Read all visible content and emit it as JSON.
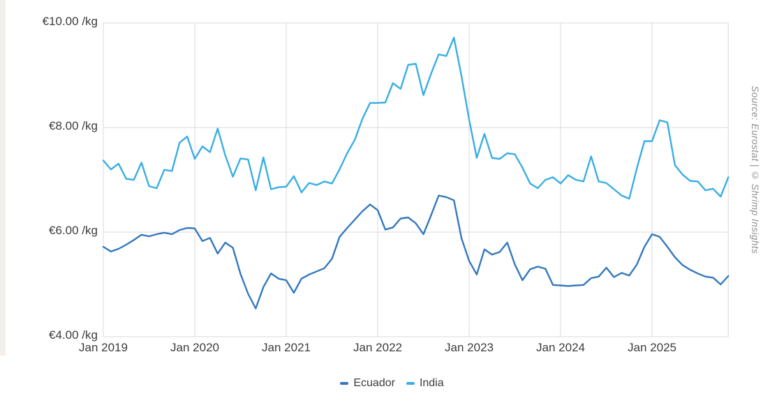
{
  "source_note": "Source: Eurostat | © Shrimp Insights",
  "legend": [
    {
      "label": "Ecuador",
      "color": "#3478bd"
    },
    {
      "label": "India",
      "color": "#3aaee3"
    }
  ],
  "colors": {
    "grid": "#d9d9d9",
    "axis_text": "#3c3c3c",
    "legend_text": "#3d3d3d",
    "source_text": "#8f8f8f",
    "background": "#ffffff",
    "left_strip": "#f5efec"
  },
  "chart_data": {
    "type": "line",
    "unit": "€/kg",
    "grid": true,
    "legend_position": "bottom",
    "x": [
      "2019-01",
      "2019-02",
      "2019-03",
      "2019-04",
      "2019-05",
      "2019-06",
      "2019-07",
      "2019-08",
      "2019-09",
      "2019-10",
      "2019-11",
      "2019-12",
      "2020-01",
      "2020-02",
      "2020-03",
      "2020-04",
      "2020-05",
      "2020-06",
      "2020-07",
      "2020-08",
      "2020-09",
      "2020-10",
      "2020-11",
      "2020-12",
      "2021-01",
      "2021-02",
      "2021-03",
      "2021-04",
      "2021-05",
      "2021-06",
      "2021-07",
      "2021-08",
      "2021-09",
      "2021-10",
      "2021-11",
      "2021-12",
      "2022-01",
      "2022-02",
      "2022-03",
      "2022-04",
      "2022-05",
      "2022-06",
      "2022-07",
      "2022-08",
      "2022-09",
      "2022-10",
      "2022-11",
      "2022-12",
      "2023-01",
      "2023-02",
      "2023-03",
      "2023-04",
      "2023-05",
      "2023-06",
      "2023-07",
      "2023-08",
      "2023-09",
      "2023-10",
      "2023-11",
      "2023-12",
      "2024-01",
      "2024-02",
      "2024-03",
      "2024-04",
      "2024-05",
      "2024-06",
      "2024-07",
      "2024-08",
      "2024-09",
      "2024-10",
      "2024-11",
      "2024-12",
      "2025-01",
      "2025-02",
      "2025-03",
      "2025-04",
      "2025-05",
      "2025-06",
      "2025-07",
      "2025-08",
      "2025-09",
      "2025-10",
      "2025-11"
    ],
    "series": [
      {
        "name": "Ecuador",
        "color": "#3478bd",
        "values": [
          5.72,
          5.63,
          5.68,
          5.76,
          5.85,
          5.95,
          5.92,
          5.96,
          5.99,
          5.96,
          6.04,
          6.08,
          6.07,
          5.83,
          5.89,
          5.59,
          5.8,
          5.7,
          5.2,
          4.82,
          4.54,
          4.95,
          5.21,
          5.11,
          5.08,
          4.84,
          5.11,
          5.19,
          5.25,
          5.31,
          5.49,
          5.91,
          6.08,
          6.24,
          6.4,
          6.53,
          6.42,
          6.05,
          6.09,
          6.26,
          6.28,
          6.17,
          5.96,
          6.32,
          6.7,
          6.67,
          6.61,
          5.88,
          5.45,
          5.19,
          5.67,
          5.57,
          5.62,
          5.8,
          5.38,
          5.08,
          5.29,
          5.34,
          5.3,
          4.99,
          4.98,
          4.97,
          4.98,
          4.99,
          5.12,
          5.15,
          5.32,
          5.14,
          5.22,
          5.17,
          5.38,
          5.72,
          5.96,
          5.91,
          5.72,
          5.52,
          5.37,
          5.28,
          5.21,
          5.15,
          5.13,
          5.0,
          5.16
        ]
      },
      {
        "name": "India",
        "color": "#3aaee3",
        "values": [
          7.37,
          7.2,
          7.31,
          7.02,
          7.0,
          7.33,
          6.88,
          6.84,
          7.19,
          7.17,
          7.71,
          7.83,
          7.4,
          7.64,
          7.53,
          7.98,
          7.47,
          7.06,
          7.41,
          7.39,
          6.8,
          7.43,
          6.82,
          6.86,
          6.87,
          7.07,
          6.76,
          6.94,
          6.9,
          6.97,
          6.93,
          7.2,
          7.51,
          7.77,
          8.17,
          8.47,
          8.47,
          8.48,
          8.85,
          8.74,
          9.2,
          9.22,
          8.62,
          9.03,
          9.4,
          9.37,
          9.72,
          8.98,
          8.15,
          7.42,
          7.88,
          7.42,
          7.4,
          7.51,
          7.49,
          7.23,
          6.93,
          6.84,
          7.0,
          7.05,
          6.93,
          7.09,
          7.0,
          6.97,
          7.45,
          6.97,
          6.94,
          6.82,
          6.7,
          6.64,
          7.22,
          7.74,
          7.74,
          8.14,
          8.1,
          7.28,
          7.1,
          6.98,
          6.97,
          6.8,
          6.83,
          6.68,
          7.05
        ]
      }
    ],
    "y_axis": {
      "min": 4,
      "max": 10,
      "tick_values": [
        10,
        8,
        6,
        4
      ],
      "tick_labels": [
        "€10.00 /kg",
        "€8.00 /kg",
        "€6.00 /kg",
        "€4.00 /kg"
      ]
    },
    "x_axis": {
      "tick_positions": [
        0,
        12,
        24,
        36,
        48,
        60,
        72
      ],
      "tick_labels": [
        "Jan 2019",
        "Jan 2020",
        "Jan 2021",
        "Jan 2022",
        "Jan 2023",
        "Jan 2024",
        "Jan 2025"
      ]
    }
  }
}
